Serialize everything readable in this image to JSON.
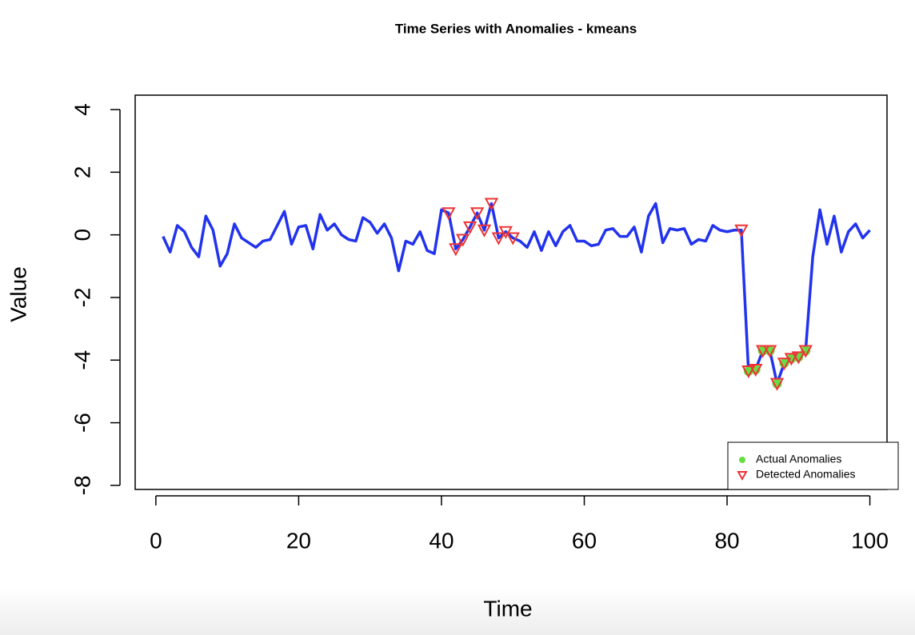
{
  "chart_data": {
    "type": "line",
    "title": "Time Series with Anomalies - kmeans",
    "x_label": "Time",
    "y_label": "Value",
    "xlim": [
      -2.9,
      102.4
    ],
    "ylim": [
      -8.13,
      4.46
    ],
    "xticks": [
      0,
      20,
      40,
      60,
      80,
      100
    ],
    "yticks": [
      -8,
      -6,
      -4,
      -2,
      0,
      2,
      4
    ],
    "legend": "bottomright",
    "series": [
      {
        "name": "Value",
        "color": "#2233ee",
        "x": [
          1,
          2,
          3,
          4,
          5,
          6,
          7,
          8,
          9,
          10,
          11,
          12,
          13,
          14,
          15,
          16,
          17,
          18,
          19,
          20,
          21,
          22,
          23,
          24,
          25,
          26,
          27,
          28,
          29,
          30,
          31,
          32,
          33,
          34,
          35,
          36,
          37,
          38,
          39,
          40,
          41,
          42,
          43,
          44,
          45,
          46,
          47,
          48,
          49,
          50,
          51,
          52,
          53,
          54,
          55,
          56,
          57,
          58,
          59,
          60,
          61,
          62,
          63,
          64,
          65,
          66,
          67,
          68,
          69,
          70,
          71,
          72,
          73,
          74,
          75,
          76,
          77,
          78,
          79,
          80,
          81,
          82,
          83,
          84,
          85,
          86,
          87,
          88,
          89,
          90,
          91,
          92,
          93,
          94,
          95,
          96,
          97,
          98,
          99,
          100
        ],
        "values": [
          -0.05,
          -0.55,
          0.3,
          0.1,
          -0.4,
          -0.7,
          0.6,
          0.15,
          -1.0,
          -0.6,
          0.35,
          -0.1,
          -0.25,
          -0.4,
          -0.2,
          -0.15,
          0.3,
          0.75,
          -0.3,
          0.25,
          0.3,
          -0.45,
          0.65,
          0.15,
          0.35,
          0.0,
          -0.15,
          -0.2,
          0.55,
          0.4,
          0.05,
          0.35,
          -0.1,
          -1.15,
          -0.2,
          -0.3,
          0.1,
          -0.5,
          -0.6,
          0.8,
          0.7,
          -0.45,
          -0.15,
          0.25,
          0.7,
          0.15,
          1.0,
          -0.1,
          0.1,
          -0.1,
          -0.2,
          -0.4,
          0.1,
          -0.5,
          0.1,
          -0.35,
          0.1,
          0.3,
          -0.2,
          -0.2,
          -0.35,
          -0.3,
          0.15,
          0.2,
          -0.05,
          -0.05,
          0.25,
          -0.55,
          0.6,
          1.0,
          -0.25,
          0.2,
          0.15,
          0.2,
          -0.3,
          -0.15,
          -0.2,
          0.3,
          0.15,
          0.1,
          0.15,
          0.15,
          -4.35,
          -4.3,
          -3.7,
          -3.7,
          -4.75,
          -4.1,
          -3.95,
          -3.9,
          -3.7,
          -0.7,
          0.8,
          -0.3,
          0.6,
          -0.55,
          0.1,
          0.35,
          -0.1,
          0.15
        ]
      }
    ],
    "anomalies": [
      {
        "name": "Actual Anomalies",
        "color": "#66dd44",
        "marker": "circle",
        "x": [
          83,
          84,
          85,
          86,
          87,
          88,
          89,
          90,
          91
        ]
      },
      {
        "name": "Detected Anomalies",
        "color": "#ee3333",
        "marker": "triangle-down",
        "x": [
          41,
          42,
          43,
          44,
          45,
          46,
          47,
          48,
          49,
          50,
          82,
          83,
          84,
          85,
          86,
          87,
          88,
          89,
          90,
          91
        ]
      }
    ]
  }
}
